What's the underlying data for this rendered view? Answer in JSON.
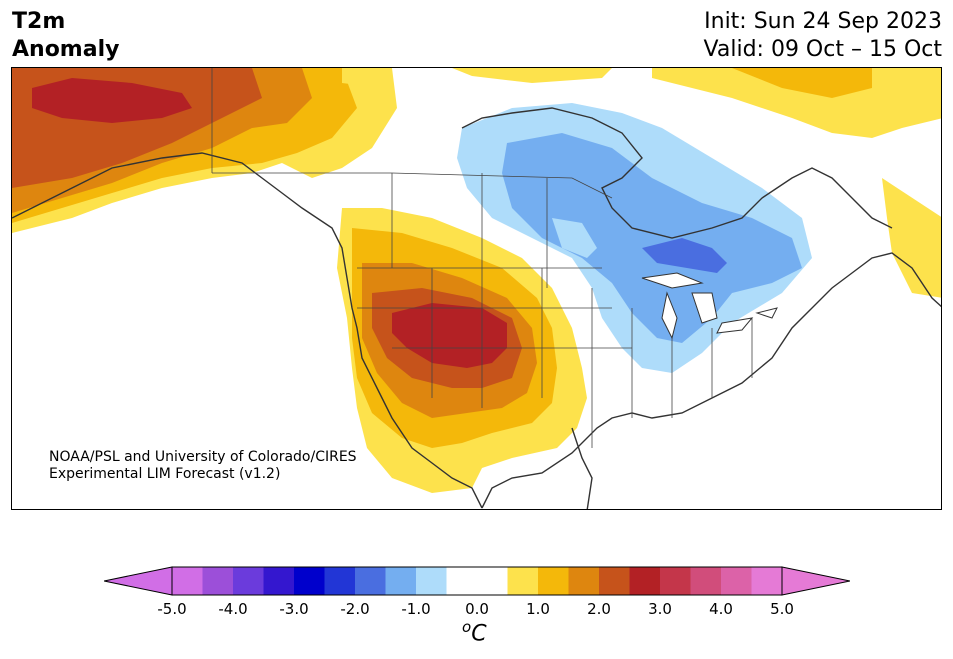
{
  "header": {
    "title_line1": "T2m",
    "title_line2": "Anomaly",
    "init": "Init: Sun 24 Sep 2023",
    "valid": "Valid: 09 Oct – 15 Oct"
  },
  "credit": {
    "line1": "NOAA/PSL and University of Colorado/CIRES",
    "line2": "Experimental LIM Forecast (v1.2)"
  },
  "colorbar": {
    "ticks": [
      "-5.0",
      "-4.0",
      "-3.0",
      "-2.0",
      "-1.0",
      "0.0",
      "1.0",
      "2.0",
      "3.0",
      "4.0",
      "5.0"
    ],
    "unit_super": "o",
    "unit": "C",
    "colors": [
      "#d16ee6",
      "#9c4fd9",
      "#6b3bdc",
      "#3417cf",
      "#0000cc",
      "#2236d6",
      "#4a6ee0",
      "#74aef0",
      "#aedcfa",
      "#ffffff",
      "#ffffff",
      "#fde24c",
      "#f4b80a",
      "#de860f",
      "#c6531b",
      "#b32125",
      "#c4364a",
      "#d14d7b",
      "#dc62a8",
      "#e57ad6"
    ],
    "extend_min_color": "#d16ee6",
    "extend_max_color": "#e57ad6"
  },
  "map": {
    "colors": {
      "warm1": "#fde24c",
      "warm2": "#f4b80a",
      "warm3": "#de860f",
      "warm4": "#c6531b",
      "warm5": "#b32125",
      "cool1": "#aedcfa",
      "cool2": "#74aef0",
      "cool3": "#4a6ee0",
      "coast": "#333333"
    }
  }
}
